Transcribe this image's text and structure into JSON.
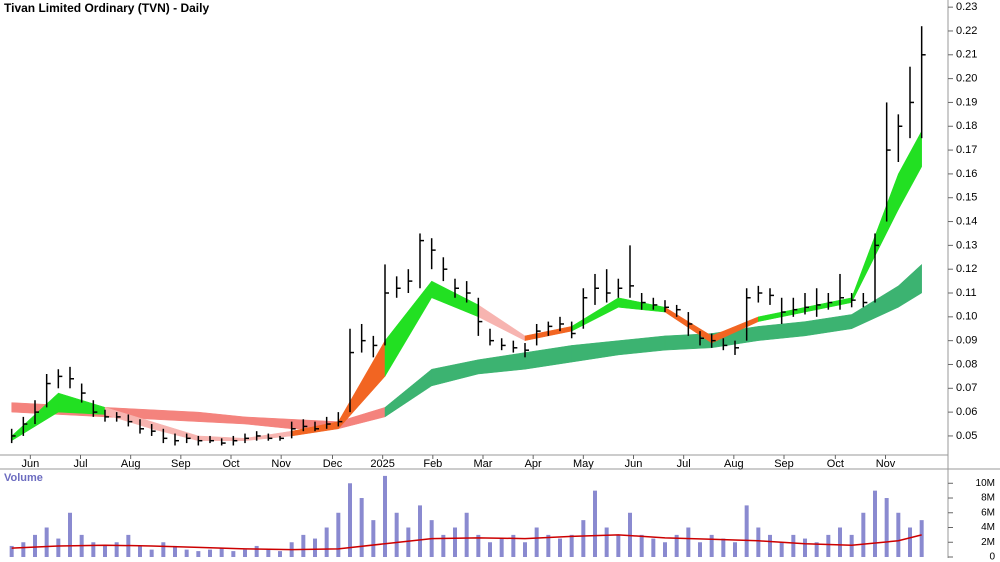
{
  "chart_data": [
    {
      "type": "ohlc",
      "title": "Tivan Limited Ordinary (TVN) - Daily",
      "xlim": [
        -1,
        80
      ],
      "xticks": [
        {
          "value": 1.6,
          "label": "Jun"
        },
        {
          "value": 5.9,
          "label": "Jul"
        },
        {
          "value": 10.2,
          "label": "Aug"
        },
        {
          "value": 14.5,
          "label": "Sep"
        },
        {
          "value": 18.8,
          "label": "Oct"
        },
        {
          "value": 23.1,
          "label": "Nov"
        },
        {
          "value": 27.5,
          "label": "Dec"
        },
        {
          "value": 31.8,
          "label": "2025"
        },
        {
          "value": 36.1,
          "label": "Feb"
        },
        {
          "value": 40.4,
          "label": "Mar"
        },
        {
          "value": 44.7,
          "label": "Apr"
        },
        {
          "value": 49.0,
          "label": "May"
        },
        {
          "value": 53.3,
          "label": "Jun"
        },
        {
          "value": 57.6,
          "label": "Jul"
        },
        {
          "value": 61.9,
          "label": "Aug"
        },
        {
          "value": 66.2,
          "label": "Sep"
        },
        {
          "value": 70.6,
          "label": "Oct"
        },
        {
          "value": 74.9,
          "label": "Nov"
        }
      ],
      "ylim": [
        0.042,
        0.233
      ],
      "yticks": [
        0.05,
        0.06,
        0.07,
        0.08,
        0.09,
        {
          "value": 0.1,
          "label": "0.10"
        },
        0.11,
        0.12,
        0.13,
        0.14,
        0.15,
        0.16,
        0.17,
        0.18,
        0.19,
        {
          "value": 0.2,
          "label": "0.20"
        },
        0.21,
        0.22,
        0.23
      ],
      "color": "#000000",
      "x": [
        0,
        1,
        2,
        3,
        4,
        5,
        6,
        7,
        8,
        9,
        10,
        11,
        12,
        13,
        14,
        15,
        16,
        17,
        18,
        19,
        20,
        21,
        22,
        23,
        24,
        25,
        26,
        27,
        28,
        29,
        30,
        31,
        32,
        33,
        34,
        35,
        36,
        37,
        38,
        39,
        40,
        41,
        42,
        43,
        44,
        45,
        46,
        47,
        48,
        49,
        50,
        51,
        52,
        53,
        54,
        55,
        56,
        57,
        58,
        59,
        60,
        61,
        62,
        63,
        64,
        65,
        66,
        67,
        68,
        69,
        70,
        71,
        72,
        73,
        74,
        75,
        76,
        77,
        78
      ],
      "high": [
        0.053,
        0.058,
        0.065,
        0.076,
        0.078,
        0.079,
        0.072,
        0.065,
        0.061,
        0.06,
        0.059,
        0.057,
        0.055,
        0.053,
        0.051,
        0.051,
        0.05,
        0.05,
        0.049,
        0.05,
        0.051,
        0.052,
        0.051,
        0.05,
        0.056,
        0.057,
        0.056,
        0.058,
        0.06,
        0.095,
        0.097,
        0.092,
        0.122,
        0.117,
        0.12,
        0.135,
        0.133,
        0.125,
        0.116,
        0.115,
        0.108,
        0.095,
        0.091,
        0.09,
        0.089,
        0.097,
        0.098,
        0.1,
        0.098,
        0.112,
        0.118,
        0.12,
        0.116,
        0.13,
        0.11,
        0.108,
        0.107,
        0.105,
        0.102,
        0.094,
        0.093,
        0.091,
        0.09,
        0.112,
        0.113,
        0.112,
        0.108,
        0.108,
        0.11,
        0.112,
        0.11,
        0.118,
        0.11,
        0.11,
        0.135,
        0.19,
        0.185,
        0.205,
        0.222
      ],
      "low": [
        0.047,
        0.05,
        0.055,
        0.062,
        0.07,
        0.07,
        0.064,
        0.058,
        0.056,
        0.056,
        0.054,
        0.051,
        0.05,
        0.047,
        0.046,
        0.047,
        0.046,
        0.047,
        0.046,
        0.046,
        0.047,
        0.048,
        0.048,
        0.048,
        0.049,
        0.052,
        0.052,
        0.053,
        0.054,
        0.06,
        0.085,
        0.083,
        0.088,
        0.108,
        0.11,
        0.112,
        0.12,
        0.115,
        0.108,
        0.106,
        0.092,
        0.088,
        0.086,
        0.085,
        0.083,
        0.088,
        0.092,
        0.094,
        0.091,
        0.095,
        0.105,
        0.106,
        0.108,
        0.108,
        0.103,
        0.103,
        0.102,
        0.1,
        0.092,
        0.088,
        0.087,
        0.086,
        0.084,
        0.09,
        0.106,
        0.105,
        0.097,
        0.1,
        0.101,
        0.1,
        0.103,
        0.103,
        0.104,
        0.104,
        0.106,
        0.14,
        0.165,
        0.175,
        0.175
      ],
      "close": [
        0.05,
        0.055,
        0.06,
        0.072,
        0.075,
        0.074,
        0.068,
        0.06,
        0.058,
        0.058,
        0.056,
        0.053,
        0.052,
        0.049,
        0.048,
        0.049,
        0.048,
        0.048,
        0.047,
        0.048,
        0.049,
        0.05,
        0.049,
        0.049,
        0.053,
        0.054,
        0.053,
        0.055,
        0.056,
        0.085,
        0.09,
        0.088,
        0.11,
        0.112,
        0.115,
        0.132,
        0.128,
        0.12,
        0.112,
        0.11,
        0.098,
        0.09,
        0.088,
        0.087,
        0.086,
        0.094,
        0.096,
        0.097,
        0.093,
        0.108,
        0.112,
        0.11,
        0.112,
        0.113,
        0.106,
        0.105,
        0.104,
        0.103,
        0.097,
        0.091,
        0.09,
        0.088,
        0.087,
        0.108,
        0.11,
        0.109,
        0.102,
        0.103,
        0.104,
        0.105,
        0.106,
        0.108,
        0.107,
        0.106,
        0.13,
        0.17,
        0.18,
        0.19,
        0.21
      ],
      "ribbons": [
        {
          "x": [
            0,
            4,
            8,
            12,
            16,
            20,
            24,
            28,
            32,
            36,
            40,
            44,
            48,
            52,
            56,
            60,
            64,
            68,
            72,
            76,
            78
          ],
          "upper": [
            0.064,
            0.063,
            0.062,
            0.061,
            0.06,
            0.058,
            0.057,
            0.056,
            0.062,
            0.078,
            0.082,
            0.085,
            0.088,
            0.09,
            0.092,
            0.093,
            0.096,
            0.098,
            0.101,
            0.113,
            0.122
          ],
          "lower": [
            0.06,
            0.059,
            0.058,
            0.057,
            0.056,
            0.055,
            0.053,
            0.053,
            0.058,
            0.071,
            0.076,
            0.078,
            0.081,
            0.084,
            0.086,
            0.087,
            0.09,
            0.092,
            0.095,
            0.104,
            0.11
          ],
          "colors": [
            "#f4837d",
            "#f4837d",
            "#f4837d",
            "#f4837d",
            "#f4837d",
            "#f4837d",
            "#f4837d",
            "#f4837d",
            "#3cb371",
            "#3cb371",
            "#3cb371",
            "#3cb371",
            "#3cb371",
            "#3cb371",
            "#3cb371",
            "#3cb371",
            "#3cb371",
            "#3cb371",
            "#3cb371",
            "#3cb371",
            "#3cb371"
          ]
        },
        {
          "x": [
            0,
            4,
            8,
            12,
            16,
            20,
            24,
            28,
            32,
            36,
            40,
            44,
            48,
            52,
            56,
            60,
            64,
            68,
            72,
            76,
            78
          ],
          "upper": [
            0.05,
            0.068,
            0.062,
            0.056,
            0.05,
            0.049,
            0.052,
            0.056,
            0.09,
            0.115,
            0.105,
            0.092,
            0.096,
            0.108,
            0.104,
            0.092,
            0.1,
            0.104,
            0.108,
            0.16,
            0.178
          ],
          "lower": [
            0.048,
            0.06,
            0.059,
            0.053,
            0.048,
            0.048,
            0.05,
            0.053,
            0.075,
            0.108,
            0.1,
            0.09,
            0.094,
            0.104,
            0.102,
            0.089,
            0.098,
            0.102,
            0.106,
            0.145,
            0.163
          ],
          "colors": [
            "#22e022",
            "#22e022",
            "#f7b4b0",
            "#f7b4b0",
            "#f7b4b0",
            "#f7b4b0",
            "#f26522",
            "#f26522",
            "#22e022",
            "#22e022",
            "#f7b4b0",
            "#f26522",
            "#22e022",
            "#22e022",
            "#f26522",
            "#f26522",
            "#22e022",
            "#22e022",
            "#22e022",
            "#22e022",
            "#22e022"
          ]
        }
      ]
    },
    {
      "type": "bar",
      "title": "Volume",
      "color": "#8a8ad0",
      "ylim": [
        0,
        11800000
      ],
      "yticks": [
        0,
        {
          "value": 2000000,
          "label": "2M"
        },
        {
          "value": 4000000,
          "label": "4M"
        },
        {
          "value": 6000000,
          "label": "6M"
        },
        {
          "value": 8000000,
          "label": "8M"
        },
        {
          "value": 10000000,
          "label": "10M"
        }
      ],
      "x": [
        0,
        1,
        2,
        3,
        4,
        5,
        6,
        7,
        8,
        9,
        10,
        11,
        12,
        13,
        14,
        15,
        16,
        17,
        18,
        19,
        20,
        21,
        22,
        23,
        24,
        25,
        26,
        27,
        28,
        29,
        30,
        31,
        32,
        33,
        34,
        35,
        36,
        37,
        38,
        39,
        40,
        41,
        42,
        43,
        44,
        45,
        46,
        47,
        48,
        49,
        50,
        51,
        52,
        53,
        54,
        55,
        56,
        57,
        58,
        59,
        60,
        61,
        62,
        63,
        64,
        65,
        66,
        67,
        68,
        69,
        70,
        71,
        72,
        73,
        74,
        75,
        76,
        77,
        78
      ],
      "values": [
        1500000,
        2000000,
        3000000,
        4000000,
        2500000,
        6000000,
        3000000,
        2000000,
        1500000,
        2000000,
        3000000,
        1500000,
        1000000,
        2000000,
        1500000,
        1000000,
        800000,
        1000000,
        1200000,
        800000,
        1000000,
        1500000,
        1000000,
        800000,
        2000000,
        3000000,
        2500000,
        4000000,
        6000000,
        10000000,
        8000000,
        5000000,
        11000000,
        6000000,
        4000000,
        7000000,
        5000000,
        3000000,
        4000000,
        6000000,
        3000000,
        2000000,
        2500000,
        3000000,
        2000000,
        4000000,
        3000000,
        2500000,
        3000000,
        5000000,
        9000000,
        4000000,
        3000000,
        6000000,
        3000000,
        2500000,
        2000000,
        3000000,
        4000000,
        2000000,
        3000000,
        2500000,
        2000000,
        7000000,
        4000000,
        3000000,
        2000000,
        3000000,
        2500000,
        2000000,
        3000000,
        4000000,
        3000000,
        6000000,
        9000000,
        8000000,
        6000000,
        4000000,
        5000000
      ],
      "average": {
        "color": "#cc0000",
        "x": [
          0,
          4,
          8,
          12,
          16,
          20,
          24,
          28,
          32,
          36,
          40,
          44,
          48,
          52,
          56,
          60,
          64,
          68,
          72,
          76,
          78
        ],
        "values": [
          1200000,
          1500000,
          1600000,
          1500000,
          1300000,
          1100000,
          1000000,
          1100000,
          1800000,
          2500000,
          2600000,
          2500000,
          2800000,
          3000000,
          2600000,
          2400000,
          2200000,
          1800000,
          1600000,
          2200000,
          3000000
        ]
      }
    }
  ]
}
